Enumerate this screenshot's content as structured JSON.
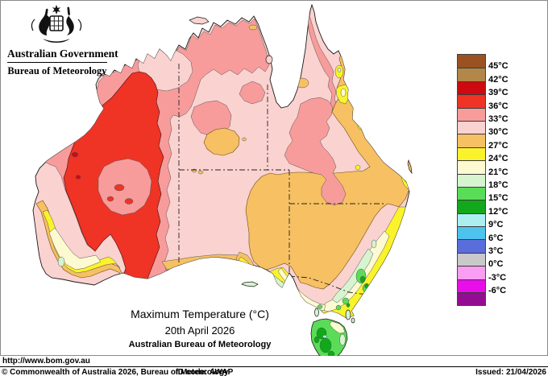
{
  "header": {
    "gov_label": "Australian Government",
    "bureau_label": "Bureau of Meteorology",
    "coat_of_arms_icon": "australian-coat-of-arms"
  },
  "map_title": {
    "line1": "Maximum Temperature (°C)",
    "line2": "20th April 2026",
    "line3": "Australian Bureau of Meteorology"
  },
  "footer": {
    "url": "http://www.bom.gov.au",
    "copyright": "© Commonwealth of Australia 2026, Bureau of Meteorology",
    "id_code": "ID code: AWAP",
    "issued": "Issued: 21/04/2026"
  },
  "colors": {
    "pale_pink": "#FAD2D0",
    "med_pink": "#F79C9B",
    "red": "#EF3325",
    "dark_red": "#CE0A10",
    "brown_45": "#9A5221",
    "brown_42": "#B28749",
    "orange": "#F6C063",
    "yellow": "#FAF32B",
    "cream": "#FDFAD2",
    "pale_green": "#D5F4CF",
    "lt_green": "#5BDC58",
    "green": "#11A81C",
    "pale_cyan": "#ACEFF1",
    "cyan": "#4EC3EE",
    "blue": "#5A6EDB",
    "grey": "#C9C9C9",
    "lt_magenta": "#F99EF2",
    "magenta": "#E90DE9",
    "purple": "#930D93",
    "coastline": "#1a1a1a"
  },
  "legend": {
    "entries": [
      {
        "color": "#9A5221",
        "label": "45°C"
      },
      {
        "color": "#B28749",
        "label": "42°C"
      },
      {
        "color": "#CE0A10",
        "label": "39°C"
      },
      {
        "color": "#EF3325",
        "label": "36°C"
      },
      {
        "color": "#F79C9B",
        "label": "33°C"
      },
      {
        "color": "#FAD2D0",
        "label": "30°C"
      },
      {
        "color": "#F6C063",
        "label": "27°C"
      },
      {
        "color": "#FAF32B",
        "label": "24°C"
      },
      {
        "color": "#FDFAD2",
        "label": "21°C"
      },
      {
        "color": "#D5F4CF",
        "label": "18°C"
      },
      {
        "color": "#5BDC58",
        "label": "15°C"
      },
      {
        "color": "#11A81C",
        "label": "12°C"
      },
      {
        "color": "#ACEFF1",
        "label": "9°C"
      },
      {
        "color": "#4EC3EE",
        "label": "6°C"
      },
      {
        "color": "#5A6EDB",
        "label": "3°C"
      },
      {
        "color": "#C9C9C9",
        "label": "0°C"
      },
      {
        "color": "#F99EF2",
        "label": "-3°C"
      },
      {
        "color": "#E90DE9",
        "label": "-6°C"
      },
      {
        "color": "#930D93",
        "label": null
      }
    ]
  },
  "chart_data": {
    "type": "map",
    "region": "Australia",
    "variable": "Maximum Temperature",
    "unit": "°C",
    "date": "20th April 2026",
    "source": "Australian Bureau of Meteorology",
    "scale_values": [
      45,
      42,
      39,
      36,
      33,
      30,
      27,
      24,
      21,
      18,
      15,
      12,
      9,
      6,
      3,
      0,
      -3,
      -6
    ],
    "scale_colors": [
      "#9A5221",
      "#B28749",
      "#CE0A10",
      "#EF3325",
      "#F79C9B",
      "#FAD2D0",
      "#F6C063",
      "#FAF32B",
      "#FDFAD2",
      "#D5F4CF",
      "#5BDC58",
      "#11A81C",
      "#ACEFF1",
      "#4EC3EE",
      "#5A6EDB",
      "#C9C9C9",
      "#F99EF2",
      "#E90DE9",
      "#930D93"
    ],
    "notable_features": {
      "hottest_band_shown": "36-39°C over interior Western Australia",
      "coolest_band_shown": "12-15°C over Tasmanian highlands and alpine southeast"
    }
  }
}
